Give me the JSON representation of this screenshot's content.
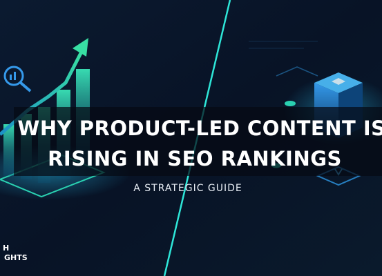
{
  "header": {
    "title_lines": [
      "WHY PRODUCT-LED CONTENT IS",
      "RISING IN SEO RANKINGS"
    ],
    "subtitle": "A STRATEGIC GUIDE"
  },
  "logo": {
    "lines": [
      "H",
      "GHTS"
    ]
  }
}
